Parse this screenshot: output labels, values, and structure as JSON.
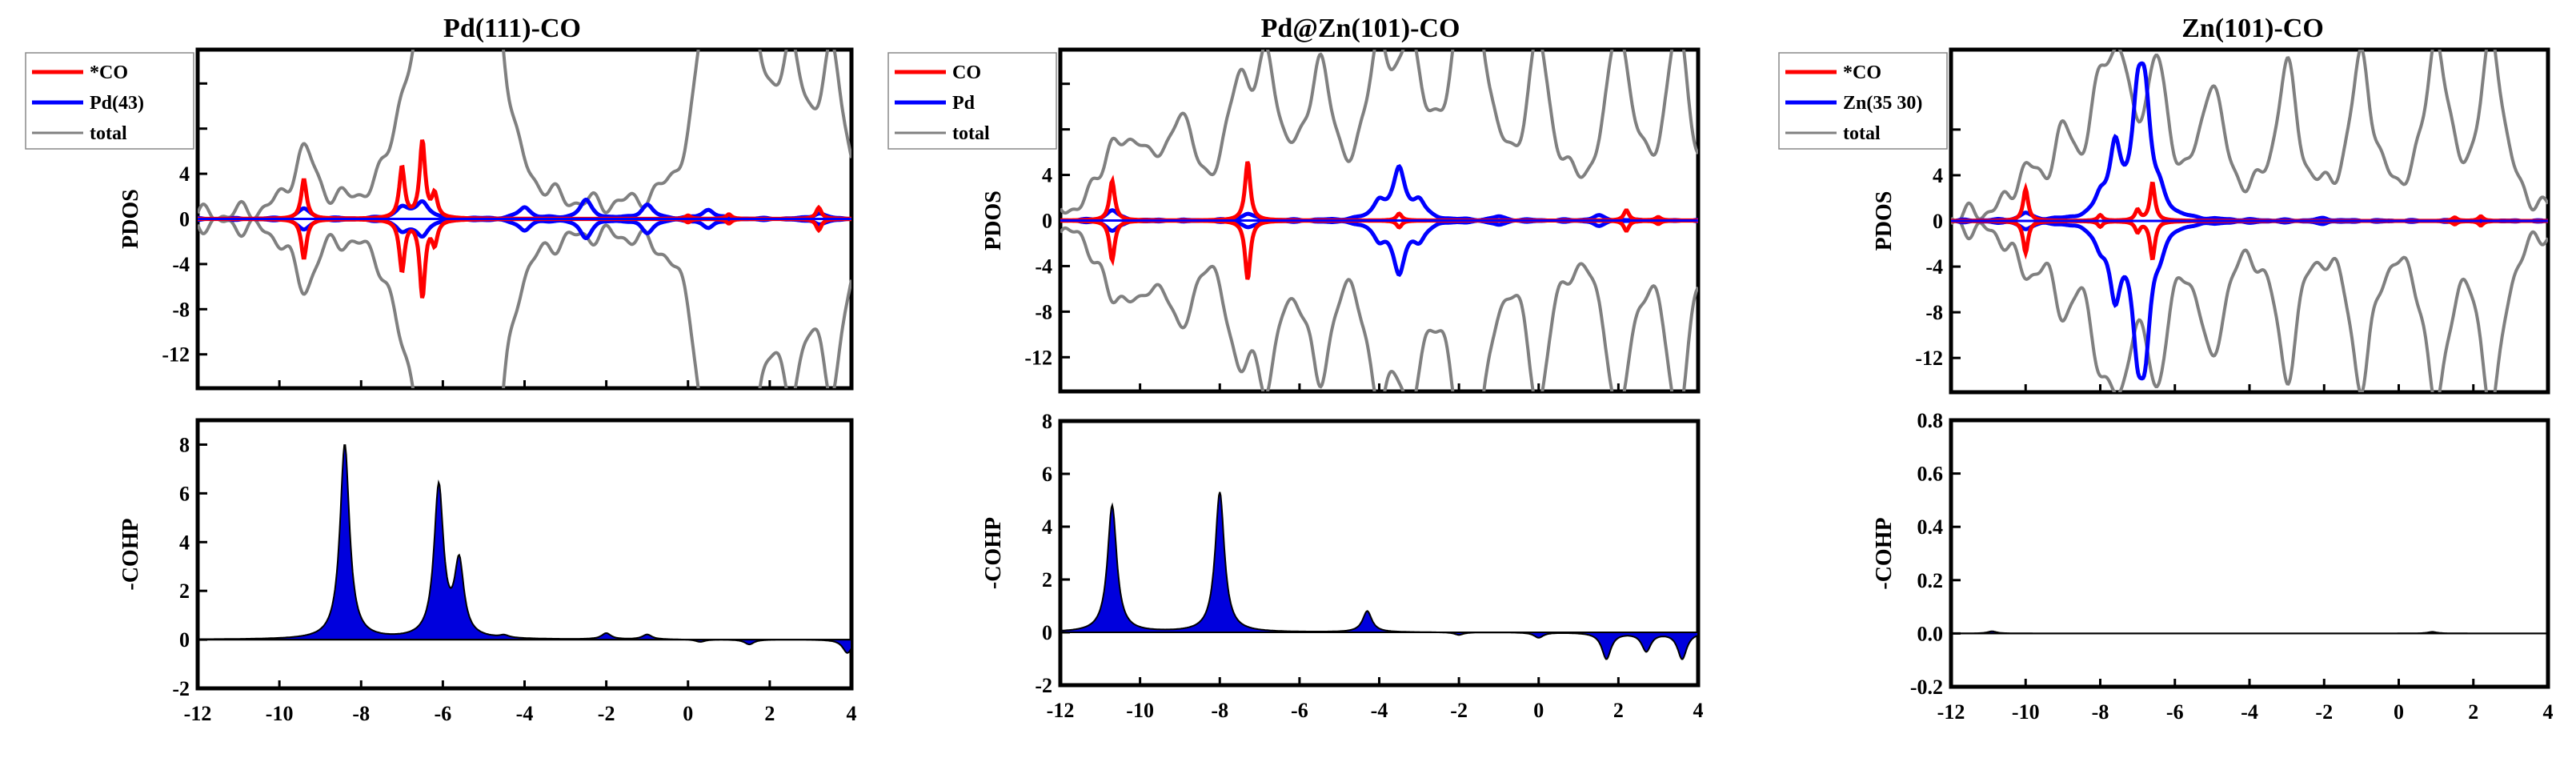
{
  "figure": {
    "description_panels": [
      "Pd(111)-CO",
      "Pd@Zn(101)-CO",
      "Zn(101)-CO"
    ]
  },
  "chart_data": [
    {
      "type": "line",
      "panel": "left-top",
      "title": "Pd(111)-CO",
      "xlabel": "",
      "ylabel": "PDOS",
      "xlim": [
        -12,
        4
      ],
      "ylim": [
        -15,
        15
      ],
      "yticks": [
        -12,
        -8,
        -4,
        0,
        4,
        8,
        12
      ],
      "legend": [
        "*CO",
        "Pd(43)",
        "total"
      ],
      "legend_position": "top-left",
      "colors": [
        "#ff0000",
        "#0000ff",
        "#808080"
      ],
      "co_peaks": [
        [
          -9.4,
          3.5
        ],
        [
          -7.0,
          4.5
        ],
        [
          -6.5,
          6.8
        ],
        [
          -6.2,
          2.0
        ],
        [
          0.0,
          0.3
        ],
        [
          1.0,
          0.4
        ],
        [
          3.2,
          1.0
        ]
      ],
      "metal_peaks": [
        [
          -9.4,
          0.9
        ],
        [
          -7.0,
          1.0
        ],
        [
          -6.5,
          1.5
        ],
        [
          -4.0,
          1.0
        ],
        [
          -2.5,
          1.6
        ],
        [
          -1.0,
          1.2
        ],
        [
          0.5,
          0.8
        ],
        [
          3.2,
          0.5
        ]
      ],
      "total_peaks": [
        [
          -9.4,
          5.5
        ],
        [
          -7.0,
          5.5
        ],
        [
          -6.5,
          11.5
        ],
        [
          -5.8,
          12.0
        ],
        [
          -5.2,
          16.0
        ],
        [
          -4.8,
          18.0
        ],
        [
          0.5,
          16.0
        ],
        [
          1.0,
          12.0
        ],
        [
          1.5,
          14.0
        ],
        [
          2.5,
          12.0
        ],
        [
          3.5,
          13.0
        ]
      ]
    },
    {
      "type": "area",
      "panel": "left-bottom",
      "title": "",
      "xlabel": "",
      "ylabel": "-COHP",
      "x_ticks": [
        -12,
        -10,
        -8,
        -6,
        -4,
        -2,
        0,
        2,
        4
      ],
      "xlim": [
        -12,
        4
      ],
      "ylim": [
        -2,
        9
      ],
      "yticks": [
        -2,
        0,
        2,
        4,
        6,
        8
      ],
      "series": [
        {
          "name": "-COHP",
          "peaks": [
            [
              -8.4,
              8.0
            ],
            [
              -6.1,
              6.2
            ],
            [
              -5.6,
              3.0
            ],
            [
              -4.5,
              0.1
            ],
            [
              -2.0,
              0.25
            ],
            [
              -1.0,
              0.2
            ],
            [
              0.3,
              -0.1
            ],
            [
              1.5,
              -0.2
            ],
            [
              3.9,
              -0.55
            ]
          ]
        }
      ]
    },
    {
      "type": "line",
      "panel": "middle-top",
      "title": "Pd@Zn(101)-CO",
      "xlabel": "",
      "ylabel": "PDOS",
      "xlim": [
        -12,
        4
      ],
      "ylim": [
        -15,
        15
      ],
      "yticks": [
        -12,
        -8,
        -4,
        0,
        4,
        8,
        12
      ],
      "legend": [
        "CO",
        "Pd",
        "total"
      ],
      "legend_position": "top-left",
      "colors": [
        "#ff0000",
        "#0000ff",
        "#808080"
      ],
      "co_peaks": [
        [
          -10.7,
          3.5
        ],
        [
          -7.3,
          5.2
        ],
        [
          -3.5,
          0.6
        ],
        [
          2.2,
          0.9
        ],
        [
          3.0,
          0.3
        ]
      ],
      "metal_peaks": [
        [
          -10.7,
          0.9
        ],
        [
          -7.3,
          0.6
        ],
        [
          -4.0,
          1.5
        ],
        [
          -3.5,
          4.4
        ],
        [
          -3.0,
          1.5
        ],
        [
          -1.0,
          0.3
        ],
        [
          1.5,
          0.4
        ]
      ],
      "total_peaks": [
        [
          -10.7,
          5.5
        ],
        [
          -10.0,
          5.0
        ],
        [
          -9.0,
          8.0
        ],
        [
          -7.5,
          10.0
        ],
        [
          -6.8,
          11.0
        ],
        [
          -5.5,
          12.0
        ],
        [
          -4.0,
          13.0
        ],
        [
          -3.2,
          12.5
        ],
        [
          -2.0,
          12.0
        ],
        [
          -1.5,
          12.5
        ],
        [
          0.0,
          14.0
        ],
        [
          2.0,
          16.0
        ],
        [
          3.5,
          16.0
        ]
      ]
    },
    {
      "type": "area",
      "panel": "middle-bottom",
      "title": "",
      "xlabel": "",
      "ylabel": "-COHP",
      "x_ticks": [
        -12,
        -10,
        -8,
        -6,
        -4,
        -2,
        0,
        2,
        4
      ],
      "xlim": [
        -12,
        4
      ],
      "ylim": [
        -2,
        8
      ],
      "yticks": [
        -2,
        0,
        2,
        4,
        6,
        8
      ],
      "series": [
        {
          "name": "-COHP",
          "peaks": [
            [
              -10.7,
              4.8
            ],
            [
              -8.0,
              5.3
            ],
            [
              -4.3,
              0.8
            ],
            [
              -2.0,
              -0.1
            ],
            [
              0.0,
              -0.2
            ],
            [
              1.7,
              -1.0
            ],
            [
              2.7,
              -0.7
            ],
            [
              3.6,
              -1.0
            ]
          ]
        }
      ]
    },
    {
      "type": "line",
      "panel": "right-top",
      "title": "Zn(101)-CO",
      "xlabel": "",
      "ylabel": "PDOS",
      "xlim": [
        -12,
        4
      ],
      "ylim": [
        -15,
        15
      ],
      "yticks": [
        -12,
        -8,
        -4,
        0,
        4,
        8
      ],
      "legend": [
        "*CO",
        "Zn(35 30)",
        "total"
      ],
      "legend_position": "top-left",
      "colors": [
        "#ff0000",
        "#0000ff",
        "#808080"
      ],
      "co_peaks": [
        [
          -10.0,
          2.8
        ],
        [
          -8.0,
          0.5
        ],
        [
          -7.0,
          0.9
        ],
        [
          -6.6,
          3.3
        ],
        [
          1.5,
          0.3
        ],
        [
          2.2,
          0.4
        ]
      ],
      "metal_peaks": [
        [
          -10.0,
          0.6
        ],
        [
          -8.0,
          1.5
        ],
        [
          -7.6,
          6.0
        ],
        [
          -7.0,
          8.5
        ],
        [
          -6.8,
          8.8
        ],
        [
          -6.4,
          1.5
        ],
        [
          -2.0,
          0.2
        ]
      ],
      "total_peaks": [
        [
          -10.0,
          3.5
        ],
        [
          -9.0,
          6.0
        ],
        [
          -8.0,
          8.0
        ],
        [
          -7.5,
          11.0
        ],
        [
          -6.5,
          12.0
        ],
        [
          -5.0,
          11.0
        ],
        [
          -3.0,
          12.5
        ],
        [
          -1.0,
          13.5
        ],
        [
          1.0,
          15.0
        ],
        [
          2.5,
          15.5
        ]
      ]
    },
    {
      "type": "area",
      "panel": "right-bottom",
      "title": "",
      "xlabel": "",
      "ylabel": "-COHP",
      "x_ticks": [
        -12,
        -10,
        -8,
        -6,
        -4,
        -2,
        0,
        2,
        4
      ],
      "xlim": [
        -12,
        4
      ],
      "ylim": [
        -0.2,
        0.8
      ],
      "ytick_labels": [
        "-0.2",
        "0.0",
        "0.2",
        "0.4",
        "0.6",
        "0.8"
      ],
      "series": [
        {
          "name": "-COHP",
          "peaks": [
            [
              -10.9,
              0.008
            ],
            [
              0.9,
              0.006
            ]
          ]
        }
      ]
    }
  ]
}
